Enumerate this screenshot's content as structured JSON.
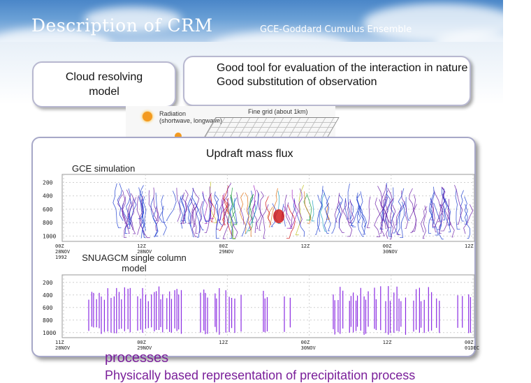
{
  "header": {
    "title": "Description of CRM",
    "subtitle": "GCE-Goddard Cumulus Ensemble"
  },
  "bubbles": {
    "crm": "Cloud resolving model",
    "tool": [
      "Good tool for evaluation of the interaction in nature",
      "Good substitution of observation"
    ]
  },
  "diagram": {
    "radiation": [
      "Radiation",
      "(shortwave, longwave)"
    ],
    "fine_grid": "Fine grid (about 1km)"
  },
  "panel": {
    "title": "Updraft mass flux",
    "gce_label": "GCE simulation",
    "snu_label": "SNUAGCM single column model",
    "gce_y_ticks": [
      "200",
      "400",
      "600",
      "800",
      "1000"
    ],
    "snu_y_ticks": [
      "200",
      "400",
      "600",
      "800",
      "1000"
    ],
    "gce_x_ticks": [
      [
        "00Z",
        "28NOV",
        "1992"
      ],
      [
        "12Z",
        "28NOV"
      ],
      [
        "00Z",
        "29NOV"
      ],
      [
        "12Z",
        ""
      ],
      [
        "00Z",
        "30NOV"
      ],
      [
        "12Z",
        ""
      ]
    ],
    "snu_x_ticks": [
      [
        "11Z",
        "28NOV"
      ],
      [
        "00Z",
        "29NOV"
      ],
      [
        "12Z",
        ""
      ],
      [
        "00Z",
        "30NOV"
      ],
      [
        "12Z",
        ""
      ],
      [
        "00Z",
        "01DEC"
      ]
    ]
  },
  "bottom": {
    "line1": "processes",
    "line2": "Physically based representation of precipitation process"
  },
  "colors": {
    "title_text": "#ffffff",
    "panel_border": "#a7a8c8",
    "bottom_text": "#7a1f9a",
    "snu_bars": "#8a2be2"
  }
}
